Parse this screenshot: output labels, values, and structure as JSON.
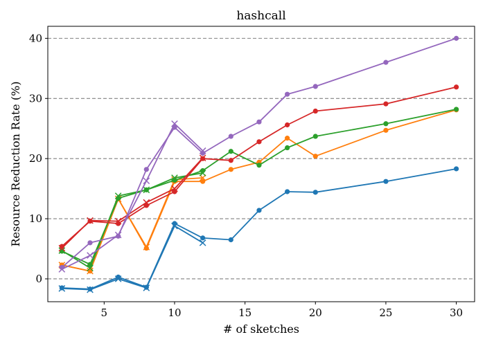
{
  "chart_data": {
    "type": "line",
    "title": "hashcall",
    "xlabel": "# of sketches",
    "ylabel": "Resource Reduction Rate (%)",
    "xlim": [
      1,
      31.3
    ],
    "ylim": [
      -3.8,
      42
    ],
    "xticks": [
      5,
      10,
      15,
      20,
      25,
      30
    ],
    "yticks": [
      0,
      10,
      20,
      30,
      40
    ],
    "grid": "horizontal dashed",
    "legend": "none",
    "series": [
      {
        "color": "#1f77b4",
        "marker": "o",
        "x": [
          2,
          4,
          6,
          8,
          10,
          12,
          14,
          16,
          18,
          20,
          25,
          30
        ],
        "values": [
          -1.5,
          -1.7,
          0.3,
          -1.4,
          9.2,
          6.8,
          6.5,
          11.4,
          14.5,
          14.4,
          16.2,
          18.3
        ]
      },
      {
        "color": "#1f77b4",
        "marker": "x",
        "x": [
          2,
          4,
          6,
          8,
          10,
          12
        ],
        "values": [
          -1.6,
          -1.8,
          0.0,
          -1.5,
          8.8,
          6.0
        ]
      },
      {
        "color": "#ff7f0e",
        "marker": "o",
        "x": [
          2,
          4,
          6,
          8,
          10,
          12,
          14,
          16,
          18,
          20,
          25,
          30
        ],
        "values": [
          2.3,
          1.3,
          13.3,
          5.1,
          16.2,
          16.2,
          18.2,
          19.4,
          23.4,
          20.4,
          24.7,
          28.1
        ]
      },
      {
        "color": "#ff7f0e",
        "marker": "x",
        "x": [
          2,
          4,
          6,
          8,
          10,
          12
        ],
        "values": [
          2.3,
          1.3,
          13.3,
          5.3,
          16.5,
          16.8
        ]
      },
      {
        "color": "#2ca02c",
        "marker": "o",
        "x": [
          2,
          4,
          6,
          8,
          10,
          12,
          14,
          16,
          18,
          20,
          25,
          30
        ],
        "values": [
          4.6,
          2.4,
          13.4,
          14.8,
          16.4,
          18.0,
          21.2,
          18.9,
          21.8,
          23.7,
          25.8,
          28.2
        ]
      },
      {
        "color": "#2ca02c",
        "marker": "x",
        "x": [
          2,
          4,
          6,
          8,
          10,
          12
        ],
        "values": [
          4.7,
          1.8,
          13.8,
          14.8,
          16.8,
          17.6
        ]
      },
      {
        "color": "#d62728",
        "marker": "o",
        "x": [
          2,
          4,
          6,
          8,
          10,
          12,
          14,
          16,
          18,
          20,
          25,
          30
        ],
        "values": [
          5.4,
          9.6,
          9.2,
          12.2,
          14.5,
          20.0,
          19.7,
          22.8,
          25.6,
          27.9,
          29.1,
          31.9
        ]
      },
      {
        "color": "#d62728",
        "marker": "x",
        "x": [
          2,
          4,
          6,
          8,
          10,
          12
        ],
        "values": [
          5.1,
          9.7,
          9.6,
          12.7,
          15.0,
          20.1
        ]
      },
      {
        "color": "#9467bd",
        "marker": "o",
        "x": [
          2,
          4,
          6,
          8,
          10,
          12,
          14,
          16,
          18,
          20,
          25,
          30
        ],
        "values": [
          1.9,
          6.0,
          7.1,
          18.2,
          25.2,
          20.9,
          23.7,
          26.1,
          30.7,
          32.0,
          36.0,
          40.0
        ]
      },
      {
        "color": "#9467bd",
        "marker": "x",
        "x": [
          2,
          4,
          6,
          8,
          10,
          12
        ],
        "values": [
          1.6,
          3.9,
          7.3,
          16.3,
          25.8,
          21.3
        ]
      }
    ]
  }
}
